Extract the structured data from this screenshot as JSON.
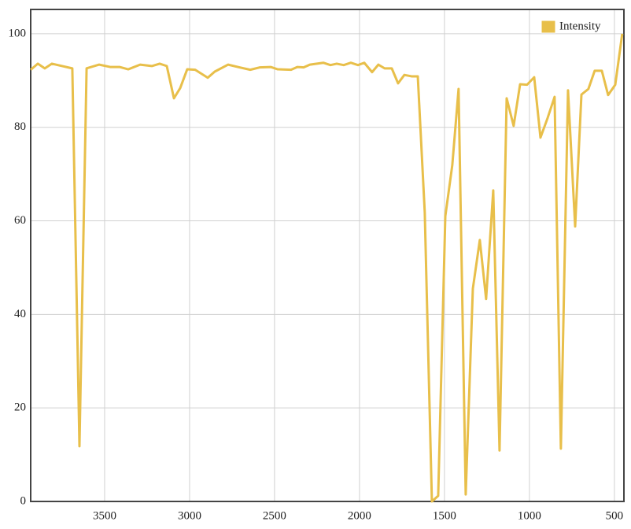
{
  "chart_data": {
    "type": "line",
    "x": [
      3935,
      3893,
      3852,
      3810,
      3690,
      3648,
      3606,
      3532,
      3467,
      3412,
      3361,
      3291,
      3222,
      3176,
      3134,
      3092,
      3055,
      3014,
      2967,
      2893,
      2852,
      2773,
      2704,
      2643,
      2588,
      2523,
      2481,
      2403,
      2366,
      2329,
      2292,
      2213,
      2171,
      2134,
      2093,
      2051,
      2009,
      1972,
      1926,
      1889,
      1852,
      1810,
      1773,
      1736,
      1694,
      1657,
      1616,
      1574,
      1537,
      1495,
      1454,
      1417,
      1375,
      1333,
      1292,
      1255,
      1213,
      1176,
      1134,
      1093,
      1055,
      1014,
      972,
      935,
      893,
      852,
      815,
      773,
      731,
      694,
      653,
      616,
      574,
      537,
      495,
      454
    ],
    "series": [
      {
        "name": "Intensity",
        "color": "#e8bf4a",
        "values": [
          92.3,
          93.6,
          92.6,
          93.6,
          92.6,
          11.8,
          92.6,
          93.4,
          92.9,
          92.9,
          92.4,
          93.4,
          93.1,
          93.6,
          93.1,
          86.2,
          88.4,
          92.4,
          92.3,
          90.6,
          91.9,
          93.4,
          92.8,
          92.3,
          92.8,
          92.9,
          92.4,
          92.3,
          92.9,
          92.8,
          93.4,
          93.8,
          93.3,
          93.6,
          93.3,
          93.8,
          93.3,
          93.8,
          91.8,
          93.4,
          92.6,
          92.6,
          89.4,
          91.2,
          90.9,
          90.9,
          61.8,
          0,
          1.2,
          61.0,
          71.9,
          88.2,
          1.5,
          45.5,
          55.9,
          43.3,
          66.5,
          10.9,
          86.2,
          80.3,
          89.2,
          89.1,
          90.7,
          77.8,
          82.0,
          86.5,
          11.3,
          87.9,
          58.8,
          87.0,
          88.2,
          92.1,
          92.1,
          86.9,
          89.1,
          100
        ]
      }
    ],
    "xlim": [
      3935,
      444
    ],
    "xticks": [
      3500,
      3000,
      2500,
      2000,
      1500,
      1000,
      500
    ],
    "ylim": [
      0,
      105.2
    ],
    "yticks": [
      0,
      20,
      40,
      60,
      80,
      100
    ],
    "grid": true,
    "legend": "top-right"
  }
}
